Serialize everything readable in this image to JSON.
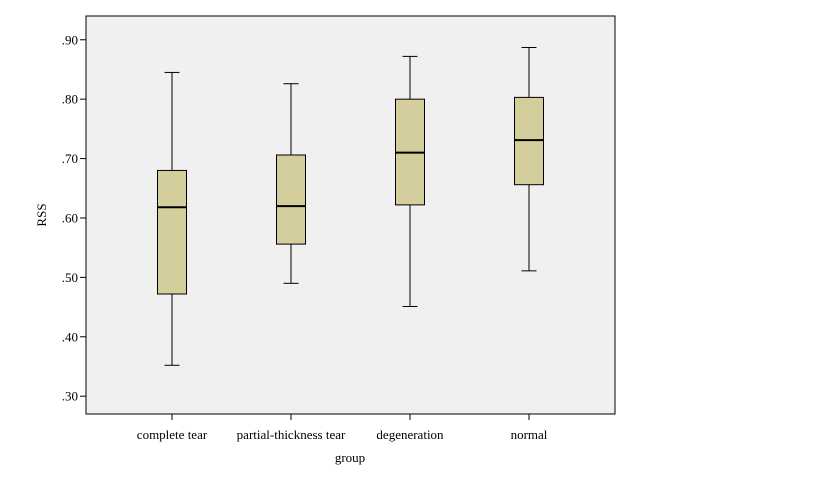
{
  "chart_data": {
    "type": "boxplot",
    "title": "",
    "xlabel": "group",
    "ylabel": "RSS",
    "ylim": [
      0.27,
      0.94
    ],
    "yticks": [
      {
        "value": 0.3,
        "label": ".30"
      },
      {
        "value": 0.4,
        "label": ".40"
      },
      {
        "value": 0.5,
        "label": ".50"
      },
      {
        "value": 0.6,
        "label": ".60"
      },
      {
        "value": 0.7,
        "label": ".70"
      },
      {
        "value": 0.8,
        "label": ".80"
      },
      {
        "value": 0.9,
        "label": ".90"
      }
    ],
    "categories": [
      "complete tear",
      "partial-thickness tear",
      "degeneration",
      "normal"
    ],
    "boxes": [
      {
        "category": "complete tear",
        "min": 0.352,
        "q1": 0.472,
        "median": 0.618,
        "q3": 0.68,
        "max": 0.845
      },
      {
        "category": "partial-thickness tear",
        "min": 0.49,
        "q1": 0.556,
        "median": 0.62,
        "q3": 0.706,
        "max": 0.826
      },
      {
        "category": "degeneration",
        "min": 0.451,
        "q1": 0.622,
        "median": 0.71,
        "q3": 0.8,
        "max": 0.872
      },
      {
        "category": "normal",
        "min": 0.511,
        "q1": 0.656,
        "median": 0.731,
        "q3": 0.803,
        "max": 0.887
      }
    ],
    "colors": {
      "plot_background": "#f0f0f0",
      "box_fill": "#d3ce9c",
      "stroke": "#000000"
    }
  }
}
